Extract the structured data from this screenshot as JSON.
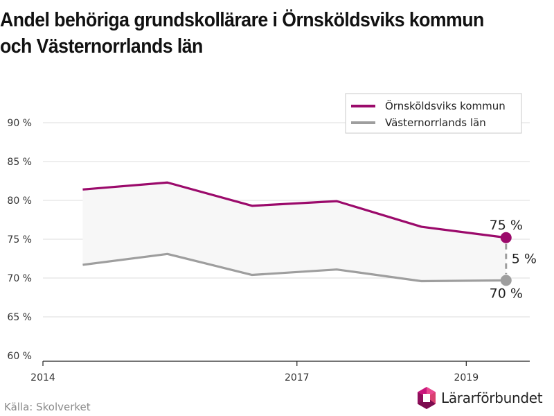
{
  "title": "Andel behöriga grundskollärare i Örnsköldsviks kommun och Västernorrlands län",
  "source": "Källa: Skolverket",
  "brand": {
    "name": "Lärarförbundet"
  },
  "colors": {
    "primary": "#9b0a6b",
    "secondary": "#9e9e9e",
    "band": "#f7f7f7",
    "grid": "#dddddd"
  },
  "chart_data": {
    "type": "line",
    "title": "Andel behöriga grundskollärare i Örnsköldsviks kommun och Västernorrlands län",
    "x_ticks": [
      "2014",
      "2017",
      "2019"
    ],
    "x_tick_values": [
      2014,
      2017,
      2019
    ],
    "xlim": [
      2014,
      2019.75
    ],
    "ylim": [
      60,
      90
    ],
    "y_ticks": [
      60,
      65,
      70,
      75,
      80,
      85,
      90
    ],
    "y_tick_labels": [
      "60 %",
      "65 %",
      "70 %",
      "75 %",
      "80 %",
      "85 %",
      "90 %"
    ],
    "x": [
      2014.47,
      2015.47,
      2016.47,
      2017.47,
      2018.47,
      2019.47
    ],
    "series": [
      {
        "name": "Örnsköldsviks kommun",
        "color": "#9b0a6b",
        "values": [
          81.4,
          82.3,
          79.3,
          79.9,
          76.6,
          75.2
        ]
      },
      {
        "name": "Västernorrlands län",
        "color": "#9e9e9e",
        "values": [
          71.7,
          73.1,
          70.4,
          71.1,
          69.6,
          69.7
        ]
      }
    ],
    "annotations": {
      "top_label": "75 %",
      "bottom_label": "70 %",
      "diff_label": "5 %"
    },
    "legend_position": "top-right",
    "grid": true
  }
}
